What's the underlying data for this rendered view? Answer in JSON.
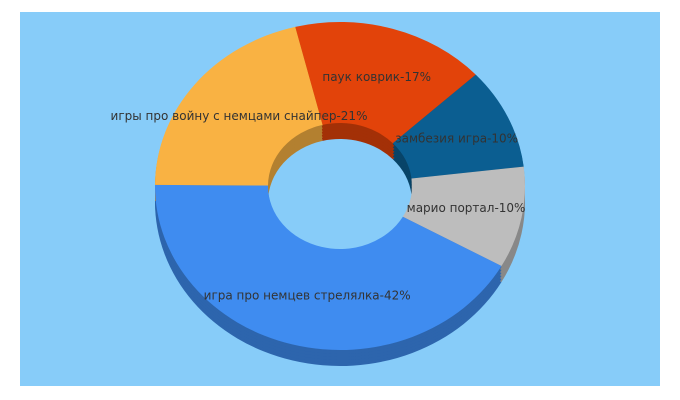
{
  "chart_data": {
    "type": "pie",
    "donut": true,
    "categories": [
      "паук коврик",
      "замбезия игра",
      "марио портал",
      "игра про немцев стрелялка",
      "игры про войну с немцами снайпер"
    ],
    "values": [
      17,
      10,
      10,
      42,
      21
    ],
    "value_labels": [
      "-17%",
      "-10%",
      "-10%",
      "-42%",
      "-21%"
    ],
    "colors": [
      "#e2430a",
      "#0b5e91",
      "#bdbdbd",
      "#3f8cf0",
      "#f9b243"
    ]
  }
}
